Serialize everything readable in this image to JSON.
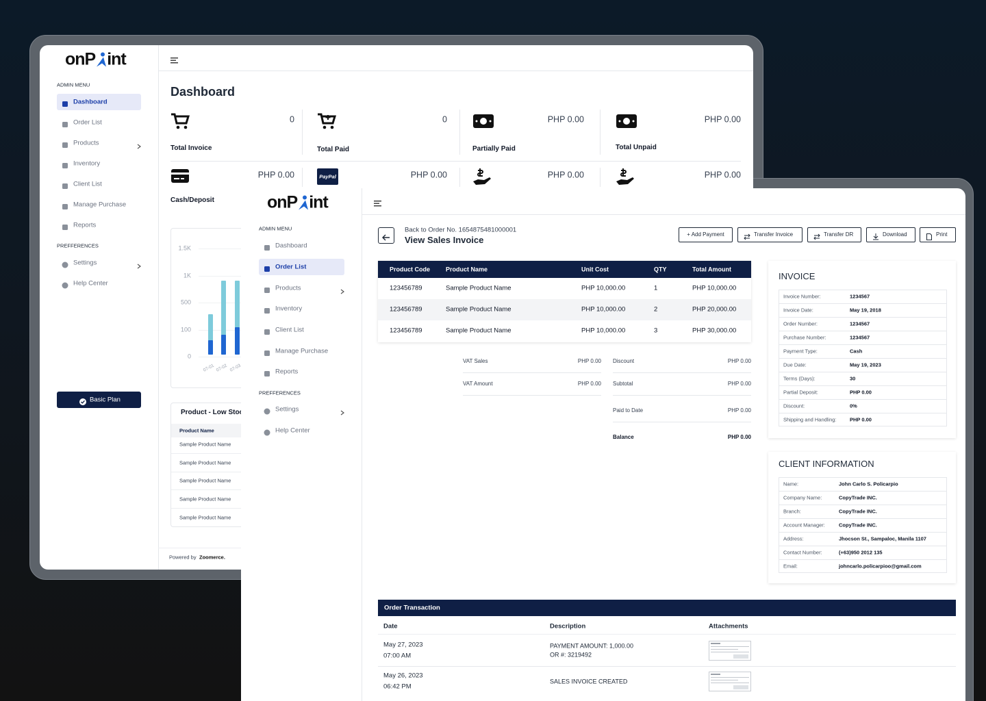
{
  "dashboard_window": {
    "logo": {
      "prefix": "onP",
      "suffix": "int"
    },
    "sidebar": {
      "admin_menu_label": "ADMIN MENU",
      "menu": [
        "Dashboard",
        "Order List",
        "Products",
        "Inventory",
        "Client List",
        "Manage Purchase",
        "Reports"
      ],
      "preferences_label": "PREFFERENCES",
      "preferences": [
        "Settings",
        "Help Center"
      ],
      "plan_button": "Basic Plan"
    },
    "title": "Dashboard",
    "stats": [
      {
        "label": "Total Invoice",
        "value": "0"
      },
      {
        "label": "Total Paid",
        "value": "0"
      },
      {
        "label": "Partially Paid",
        "value": "PHP 0.00"
      },
      {
        "label": "Total Unpaid",
        "value": "PHP 0.00"
      }
    ],
    "stats_row2": [
      {
        "label": "Cash/Deposit",
        "value": "PHP 0.00"
      },
      {
        "badge": "PayPal",
        "value": "PHP 0.00"
      },
      {
        "value": "PHP 0.00"
      },
      {
        "value": "PHP 0.00"
      }
    ],
    "chart_data": {
      "type": "bar",
      "categories": [
        "07-01",
        "07-02",
        "07-03"
      ],
      "series": [
        {
          "color": "#7ecbdb",
          "values": [
            330,
            900,
            900
          ]
        },
        {
          "color": "#1f66d1",
          "values": [
            60,
            80,
            140
          ]
        }
      ],
      "ylim": [
        0,
        1500
      ],
      "yticks": [
        0,
        100,
        500,
        {
          "value": 1000,
          "label": "1K"
        },
        {
          "value": 1500,
          "label": "1.5K"
        }
      ],
      "grid": true
    },
    "low_stock": {
      "title": "Product - Low Stock",
      "column": "Product Name",
      "rows": [
        "Sample Product Name",
        "Sample Product Name",
        "Sample Product Name",
        "Sample Product Name",
        "Sample Product Name"
      ]
    },
    "footer": {
      "prefix": "Powered by",
      "brand": "Zoomerce."
    }
  },
  "invoice_window": {
    "logo": {
      "prefix": "onP",
      "suffix": "int"
    },
    "sidebar": {
      "admin_menu_label": "ADMIN MENU",
      "menu": [
        "Dashboard",
        "Order List",
        "Products",
        "Inventory",
        "Client List",
        "Manage Purchase",
        "Reports"
      ],
      "preferences_label": "PREFFERENCES",
      "preferences": [
        "Settings",
        "Help Center"
      ]
    },
    "back_link": "Back to Order No. 1654875481000001",
    "title": "View Sales Invoice",
    "actions": [
      "+ Add Payment",
      "Transfer Invoice",
      "Transfer DR",
      "Download",
      "Print"
    ],
    "items_table": {
      "columns": [
        "Product Code",
        "Product Name",
        "Unit Cost",
        "QTY",
        "Total Amount"
      ],
      "rows": [
        [
          "123456789",
          "Sample Product Name",
          "PHP 10,000.00",
          "1",
          "PHP 10,000.00"
        ],
        [
          "123456789",
          "Sample Product Name",
          "PHP 10,000.00",
          "2",
          "PHP 20,000.00"
        ],
        [
          "123456789",
          "Sample Product Name",
          "PHP 10,000.00",
          "3",
          "PHP 30,000.00"
        ]
      ]
    },
    "summary": {
      "left": [
        [
          "VAT Sales",
          "PHP 0.00"
        ],
        [
          "VAT Amount",
          "PHP 0.00"
        ]
      ],
      "right": [
        [
          "Discount",
          "PHP 0.00"
        ],
        [
          "Subtotal",
          "PHP 0.00"
        ],
        [
          "Paid to Date",
          "PHP 0.00"
        ],
        [
          "Balance",
          "PHP 0.00"
        ]
      ]
    },
    "invoice": {
      "title": "INVOICE",
      "rows": [
        [
          "Invoice Number:",
          "1234567"
        ],
        [
          "Invoice Date:",
          "May 19, 2018"
        ],
        [
          "Order Number:",
          "1234567"
        ],
        [
          "Purchase Number:",
          "1234567"
        ],
        [
          "Payment Type:",
          "Cash"
        ],
        [
          "Due Date:",
          "May 19, 2023"
        ],
        [
          "Terms (Days):",
          "30"
        ],
        [
          "Partial Deposit:",
          "PHP 0.00"
        ],
        [
          "Discount:",
          "0%"
        ],
        [
          "Shipping and Handling:",
          "PHP 0.00"
        ]
      ]
    },
    "client": {
      "title": "CLIENT INFORMATION",
      "rows": [
        [
          "Name:",
          "John Carlo S. Policarpio"
        ],
        [
          "Company Name:",
          "CopyTrade INC."
        ],
        [
          "Branch:",
          "CopyTrade INC."
        ],
        [
          "Account Manager:",
          "CopyTrade INC."
        ],
        [
          "Address:",
          "Jhocson St., Sampaloc, Manila 1107"
        ],
        [
          "Contact Number:",
          "(+63)950 2012 135"
        ],
        [
          "Email:",
          "johncarlo.policarpioo@gmail.com"
        ]
      ]
    },
    "transactions": {
      "title": "Order Transaction",
      "columns": [
        "Date",
        "Description",
        "Attachments"
      ],
      "rows": [
        {
          "date": "May 27, 2023",
          "time": "07:00 AM",
          "description": [
            "PAYMENT AMOUNT: 1,000.00",
            "OR #: 3219492"
          ]
        },
        {
          "date": "May 26, 2023",
          "time": "06:42 PM",
          "description": [
            "SALES INVOICE CREATED"
          ]
        }
      ]
    }
  }
}
